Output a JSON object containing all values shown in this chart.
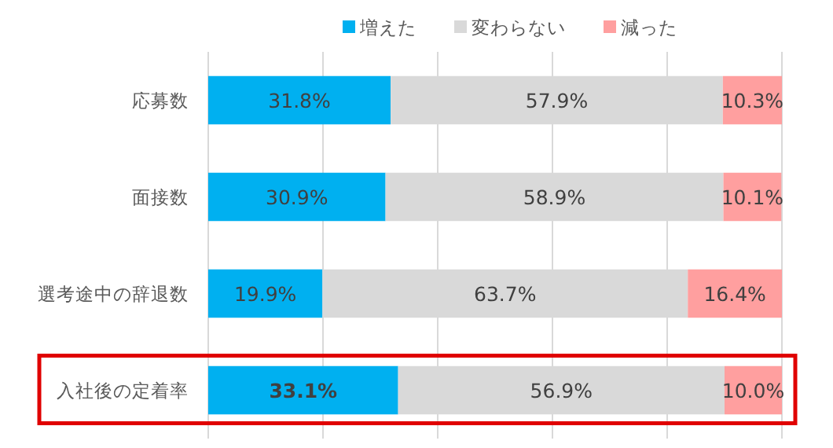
{
  "chart_data": {
    "type": "bar",
    "orientation": "horizontal",
    "stacked": true,
    "categories": [
      "応募数",
      "面接数",
      "選考途中の辞退数",
      "入社後の定着率"
    ],
    "series": [
      {
        "name": "増えた",
        "color": "#00b0f0",
        "values": [
          31.8,
          30.9,
          19.9,
          33.1
        ],
        "value_labels": [
          "31.8%",
          "30.9%",
          "19.9%",
          "33.1%"
        ]
      },
      {
        "name": "変わらない",
        "color": "#d9d9d9",
        "values": [
          57.9,
          58.9,
          63.7,
          56.9
        ],
        "value_labels": [
          "57.9%",
          "58.9%",
          "63.7%",
          "56.9%"
        ]
      },
      {
        "name": "減った",
        "color": "#ff9f9f",
        "values": [
          10.3,
          10.1,
          16.4,
          10.0
        ],
        "value_labels": [
          "10.3%",
          "10.1%",
          "16.4%",
          "10.0%"
        ]
      }
    ],
    "grid": "x",
    "legend": "top",
    "tick_labels": "y"
  }
}
